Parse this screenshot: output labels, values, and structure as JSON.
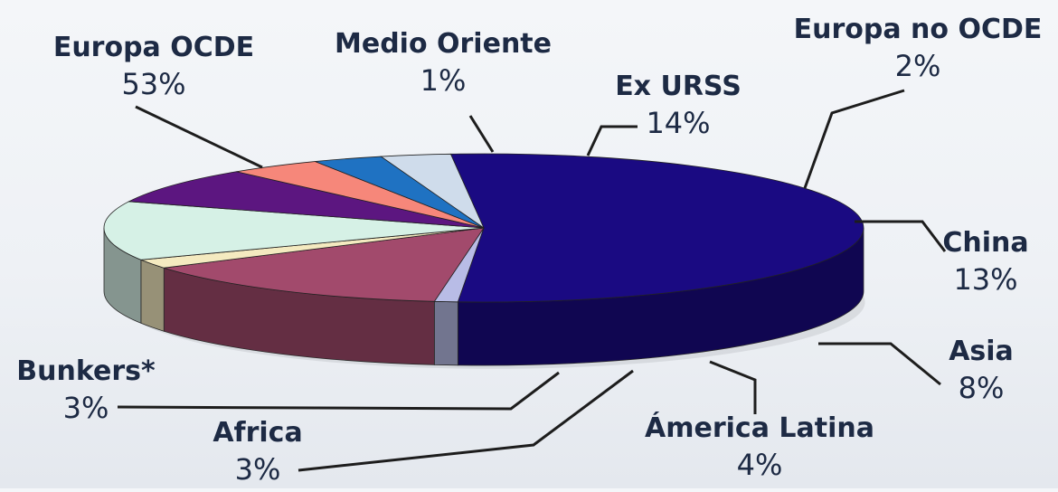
{
  "chart_data": {
    "type": "pie",
    "title": "",
    "slices": [
      {
        "label": "Europa OCDE",
        "value": 53,
        "value_label": "53%",
        "color": "#1a0a82"
      },
      {
        "label": "Medio Oriente",
        "value": 1,
        "value_label": "1%",
        "color": "#b8bce6"
      },
      {
        "label": "Ex URSS",
        "value": 14,
        "value_label": "14%",
        "color": "#a24a6c"
      },
      {
        "label": "Europa no OCDE",
        "value": 2,
        "value_label": "2%",
        "color": "#f4eac0"
      },
      {
        "label": "China",
        "value": 13,
        "value_label": "13%",
        "color": "#d6f1e6"
      },
      {
        "label": "Asia",
        "value": 8,
        "value_label": "8%",
        "color": "#5c1680"
      },
      {
        "label": "Ámerica Latina",
        "value": 4,
        "value_label": "4%",
        "color": "#f6877a"
      },
      {
        "label": "Africa",
        "value": 3,
        "value_label": "3%",
        "color": "#1f72c2"
      },
      {
        "label": "Bunkers*",
        "value": 3,
        "value_label": "3%",
        "color": "#cfdceb"
      }
    ],
    "legend": "none",
    "three_d": true
  }
}
